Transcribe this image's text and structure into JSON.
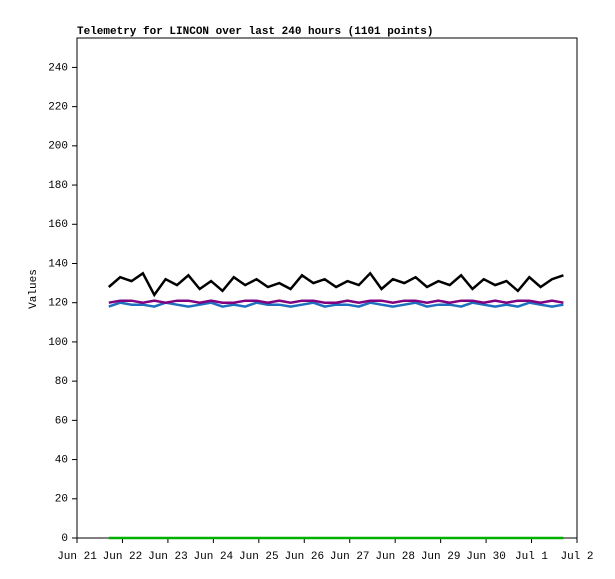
{
  "chart_data": {
    "type": "line",
    "title": "Telemetry for LINCON over last 240 hours (1101 points)",
    "y_label": "Values",
    "xlim": [
      0,
      11
    ],
    "xticks": [
      {
        "value": 0,
        "label": "Jun 21"
      },
      {
        "value": 1,
        "label": "Jun 22"
      },
      {
        "value": 2,
        "label": "Jun 23"
      },
      {
        "value": 3,
        "label": "Jun 24"
      },
      {
        "value": 4,
        "label": "Jun 25"
      },
      {
        "value": 5,
        "label": "Jun 26"
      },
      {
        "value": 6,
        "label": "Jun 27"
      },
      {
        "value": 7,
        "label": "Jun 28"
      },
      {
        "value": 8,
        "label": "Jun 29"
      },
      {
        "value": 9,
        "label": "Jun 30"
      },
      {
        "value": 10,
        "label": "Jul 1"
      },
      {
        "value": 11,
        "label": "Jul 2"
      }
    ],
    "ylim": [
      0,
      255
    ],
    "yticks": [
      0,
      20,
      40,
      60,
      80,
      100,
      120,
      140,
      160,
      180,
      200,
      220,
      240
    ],
    "x": [
      0.7,
      0.95,
      1.2,
      1.45,
      1.7,
      1.95,
      2.2,
      2.45,
      2.7,
      2.95,
      3.2,
      3.45,
      3.7,
      3.95,
      4.2,
      4.45,
      4.7,
      4.95,
      5.2,
      5.45,
      5.7,
      5.95,
      6.2,
      6.45,
      6.7,
      6.95,
      7.2,
      7.45,
      7.7,
      7.95,
      8.2,
      8.45,
      8.7,
      8.95,
      9.2,
      9.45,
      9.7,
      9.95,
      10.2,
      10.45,
      10.7
    ],
    "series": [
      {
        "color": "#1f6fbf",
        "values": [
          118,
          120,
          119,
          119,
          118,
          120,
          119,
          118,
          119,
          120,
          118,
          119,
          118,
          120,
          119,
          119,
          118,
          119,
          120,
          118,
          119,
          119,
          118,
          120,
          119,
          118,
          119,
          120,
          118,
          119,
          119,
          118,
          120,
          119,
          118,
          119,
          118,
          120,
          119,
          118,
          119
        ]
      },
      {
        "color": "#800080",
        "values": [
          120,
          121,
          121,
          120,
          121,
          120,
          121,
          121,
          120,
          121,
          120,
          120,
          121,
          121,
          120,
          121,
          120,
          121,
          121,
          120,
          120,
          121,
          120,
          121,
          121,
          120,
          121,
          121,
          120,
          121,
          120,
          121,
          121,
          120,
          121,
          120,
          121,
          121,
          120,
          121,
          120
        ]
      },
      {
        "color": "#000000",
        "values": [
          128,
          133,
          131,
          135,
          124,
          132,
          129,
          134,
          127,
          131,
          126,
          133,
          129,
          132,
          128,
          130,
          127,
          134,
          130,
          132,
          128,
          131,
          129,
          135,
          127,
          132,
          130,
          133,
          128,
          131,
          129,
          134,
          127,
          132,
          129,
          131,
          126,
          133,
          128,
          132,
          134
        ]
      },
      {
        "color": "#00b000",
        "values": [
          0,
          0,
          0,
          0,
          0,
          0,
          0,
          0,
          0,
          0,
          0,
          0,
          0,
          0,
          0,
          0,
          0,
          0,
          0,
          0,
          0,
          0,
          0,
          0,
          0,
          0,
          0,
          0,
          0,
          0,
          0,
          0,
          0,
          0,
          0,
          0,
          0,
          0,
          0,
          0,
          0
        ]
      }
    ]
  }
}
